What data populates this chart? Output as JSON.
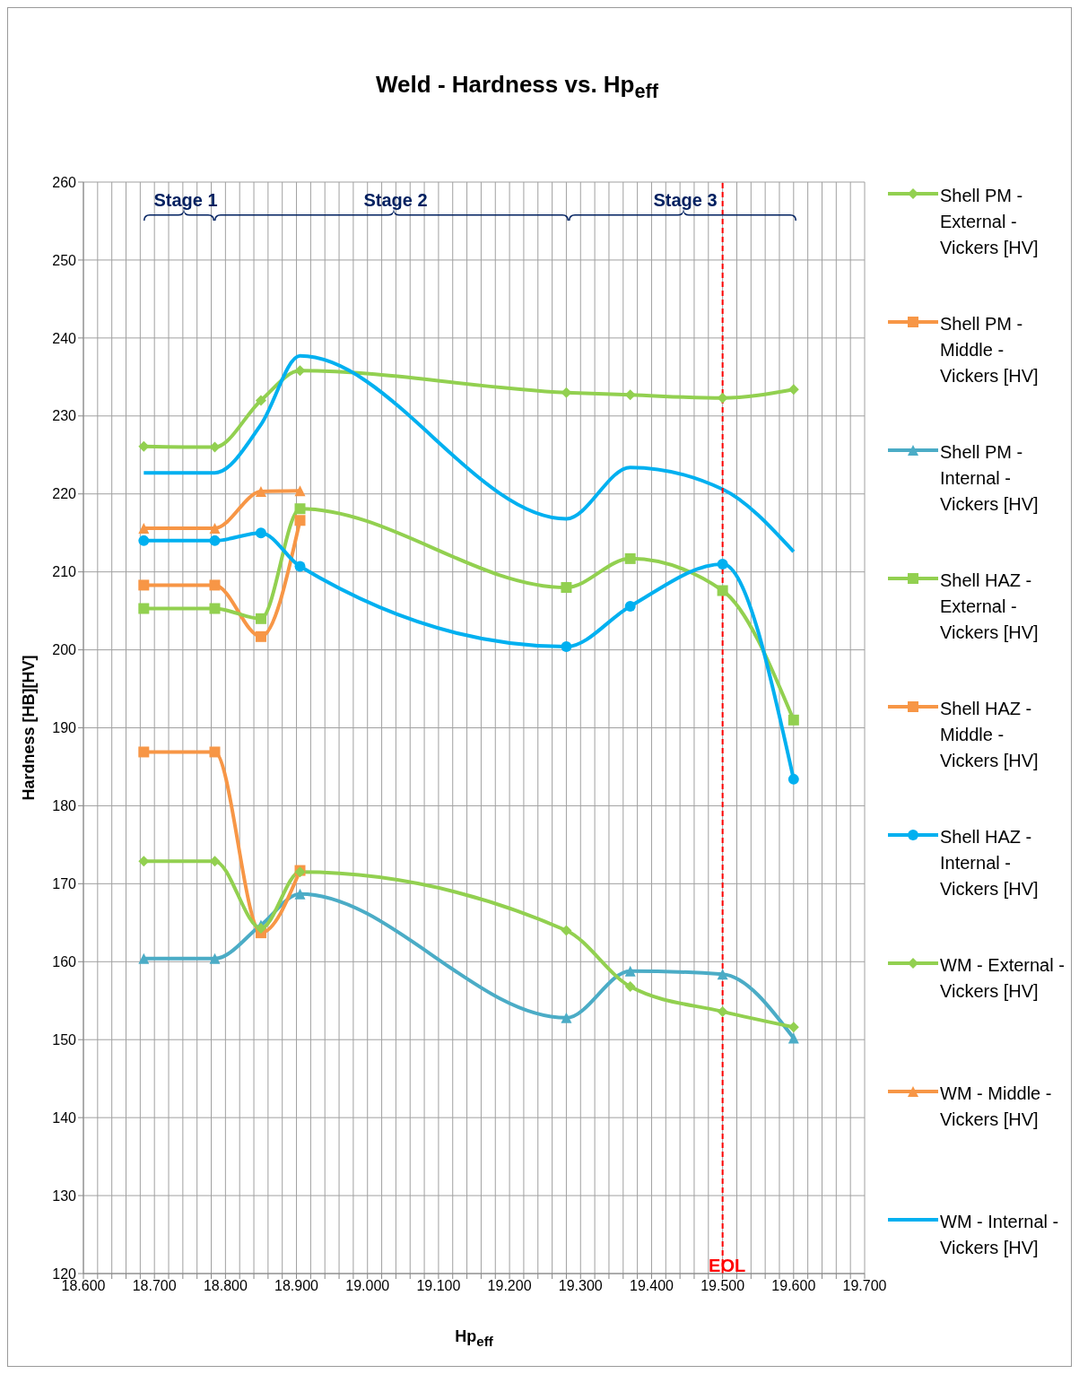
{
  "chart_data": {
    "type": "line",
    "title": "Weld - Hardness vs. Hp$_{eff}$",
    "xlabel": "Hp$_{eff}$",
    "ylabel": "Hardness [HB][HV]",
    "x": [
      18.685,
      18.785,
      18.85,
      18.905,
      19.28,
      19.37,
      19.5,
      19.6
    ],
    "series": [
      {
        "name": "Shell PM - External - Vickers [HV]",
        "color": "#92d050",
        "marker": "diamond",
        "values": [
          226.1,
          226,
          232,
          235.8,
          233,
          232.7,
          232.3,
          233.4
        ]
      },
      {
        "name": "Shell PM - Middle - Vickers [HV]",
        "color": "#f79646",
        "marker": "square",
        "values": [
          208.3,
          208.3,
          201.7,
          216.6,
          null,
          null,
          null,
          null
        ]
      },
      {
        "name": "Shell PM - Internal - Vickers [HV]",
        "color": "#4bacc6",
        "marker": "triangle",
        "values": [
          160.4,
          160.4,
          164.7,
          168.7,
          152.8,
          158.8,
          158.4,
          150.2
        ]
      },
      {
        "name": "Shell HAZ - External - Vickers [HV]",
        "color": "#92d050",
        "marker": "square",
        "values": [
          205.3,
          205.3,
          204,
          218.1,
          208,
          211.7,
          207.6,
          191
        ]
      },
      {
        "name": "Shell HAZ - Middle - Vickers [HV]",
        "color": "#f79646",
        "marker": "square",
        "values": [
          186.9,
          186.9,
          163.7,
          171.7,
          null,
          null,
          null,
          null
        ]
      },
      {
        "name": "Shell HAZ - Internal - Vickers [HV]",
        "color": "#00b0f0",
        "marker": "circle",
        "values": [
          214,
          214,
          215,
          210.7,
          200.4,
          205.6,
          211,
          183.4
        ]
      },
      {
        "name": "WM - External - Vickers [HV]",
        "color": "#92d050",
        "marker": "diamond",
        "values": [
          172.9,
          172.9,
          164.3,
          171.5,
          164,
          156.8,
          153.6,
          151.6
        ]
      },
      {
        "name": "WM - Middle - Vickers [HV]",
        "color": "#f79646",
        "marker": "triangle",
        "values": [
          215.6,
          215.6,
          220.3,
          220.4,
          null,
          null,
          null,
          null
        ]
      },
      {
        "name": "WM - Internal - Vickers [HV]",
        "color": "#00b0f0",
        "marker": "none",
        "values": [
          222.7,
          222.7,
          228.9,
          237.7,
          216.8,
          223.4,
          220.6,
          212.6
        ]
      }
    ],
    "xlim": [
      18.6,
      19.7
    ],
    "xticks": [
      {
        "value": 18.6,
        "label": "18.600"
      },
      {
        "value": 18.62,
        "label": null
      },
      {
        "value": 18.64,
        "label": null
      },
      {
        "value": 18.66,
        "label": null
      },
      {
        "value": 18.68,
        "label": null
      },
      {
        "value": 18.7,
        "label": "18.700"
      },
      {
        "value": 18.72,
        "label": null
      },
      {
        "value": 18.74,
        "label": null
      },
      {
        "value": 18.76,
        "label": null
      },
      {
        "value": 18.78,
        "label": null
      },
      {
        "value": 18.8,
        "label": "18.800"
      },
      {
        "value": 18.82,
        "label": null
      },
      {
        "value": 18.84,
        "label": null
      },
      {
        "value": 18.86,
        "label": null
      },
      {
        "value": 18.88,
        "label": null
      },
      {
        "value": 18.9,
        "label": "18.900"
      },
      {
        "value": 18.92,
        "label": null
      },
      {
        "value": 18.94,
        "label": null
      },
      {
        "value": 18.96,
        "label": null
      },
      {
        "value": 18.98,
        "label": null
      },
      {
        "value": 19.0,
        "label": "19.000"
      },
      {
        "value": 19.02,
        "label": null
      },
      {
        "value": 19.04,
        "label": null
      },
      {
        "value": 19.06,
        "label": null
      },
      {
        "value": 19.08,
        "label": null
      },
      {
        "value": 19.1,
        "label": "19.100"
      },
      {
        "value": 19.12,
        "label": null
      },
      {
        "value": 19.14,
        "label": null
      },
      {
        "value": 19.16,
        "label": null
      },
      {
        "value": 19.18,
        "label": null
      },
      {
        "value": 19.2,
        "label": "19.200"
      },
      {
        "value": 19.22,
        "label": null
      },
      {
        "value": 19.24,
        "label": null
      },
      {
        "value": 19.26,
        "label": null
      },
      {
        "value": 19.28,
        "label": null
      },
      {
        "value": 19.3,
        "label": "19.300"
      },
      {
        "value": 19.32,
        "label": null
      },
      {
        "value": 19.34,
        "label": null
      },
      {
        "value": 19.36,
        "label": null
      },
      {
        "value": 19.38,
        "label": null
      },
      {
        "value": 19.4,
        "label": "19.400"
      },
      {
        "value": 19.42,
        "label": null
      },
      {
        "value": 19.44,
        "label": null
      },
      {
        "value": 19.46,
        "label": null
      },
      {
        "value": 19.48,
        "label": null
      },
      {
        "value": 19.5,
        "label": "19.500"
      },
      {
        "value": 19.52,
        "label": null
      },
      {
        "value": 19.54,
        "label": null
      },
      {
        "value": 19.56,
        "label": null
      },
      {
        "value": 19.58,
        "label": null
      },
      {
        "value": 19.6,
        "label": "19.600"
      },
      {
        "value": 19.62,
        "label": null
      },
      {
        "value": 19.64,
        "label": null
      },
      {
        "value": 19.66,
        "label": null
      },
      {
        "value": 19.68,
        "label": null
      },
      {
        "value": 19.7,
        "label": "19.700"
      }
    ],
    "ylim": [
      120,
      260
    ],
    "yticks": [
      120,
      130,
      140,
      150,
      160,
      170,
      180,
      190,
      200,
      210,
      220,
      230,
      240,
      250,
      260
    ],
    "grid": true,
    "legend": "right",
    "line_style": "solid",
    "ref_lines": [
      {
        "axis": "x",
        "value": 19.5,
        "label": "EOL",
        "color": "#ff0000",
        "line_style": "dashed"
      }
    ],
    "annotations": [
      "Stage 1",
      "Stage 2",
      "Stage 3"
    ]
  }
}
